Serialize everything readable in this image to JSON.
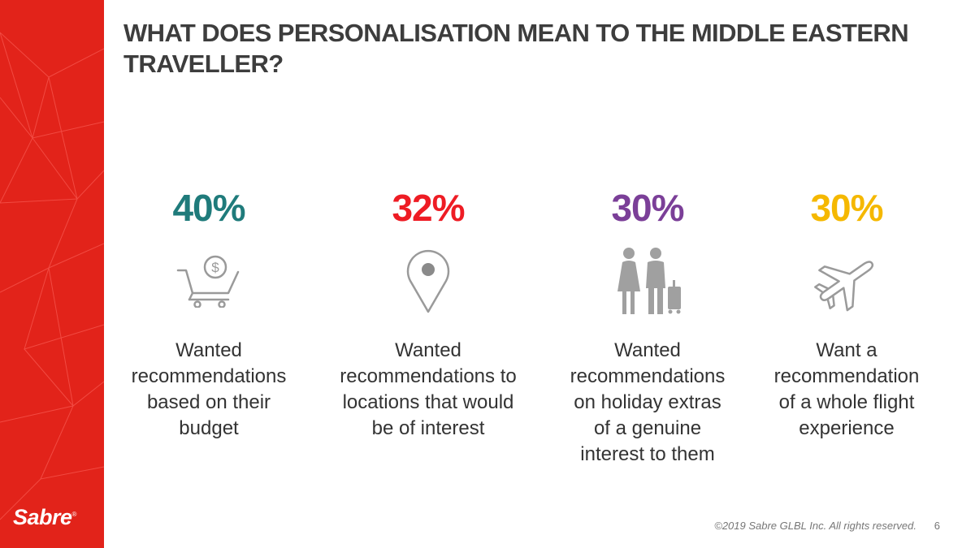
{
  "slide": {
    "title": "WHAT DOES PERSONALISATION MEAN TO THE MIDDLE EASTERN TRAVELLER?",
    "brand": "Sabre",
    "copyright": "©2019 Sabre GLBL Inc. All rights reserved.",
    "page_number": "6",
    "accent_color": "#e2231a"
  },
  "stats": [
    {
      "value": "40%",
      "color": "#1f7b7b",
      "icon": "shopping-cart-dollar-icon",
      "description": "Wanted\nrecommendations\nbased on their\nbudget"
    },
    {
      "value": "32%",
      "color": "#ee1c24",
      "icon": "location-pin-icon",
      "description": "Wanted\nrecommendations to\nlocations that would\nbe of interest"
    },
    {
      "value": "30%",
      "color": "#7b3f98",
      "icon": "travellers-icon",
      "description": "Wanted\nrecommendations\non holiday extras\nof a genuine\ninterest to them"
    },
    {
      "value": "30%",
      "color": "#f5b800",
      "icon": "airplane-icon",
      "description": "Want a\nrecommendation\nof a whole flight\nexperience"
    }
  ]
}
